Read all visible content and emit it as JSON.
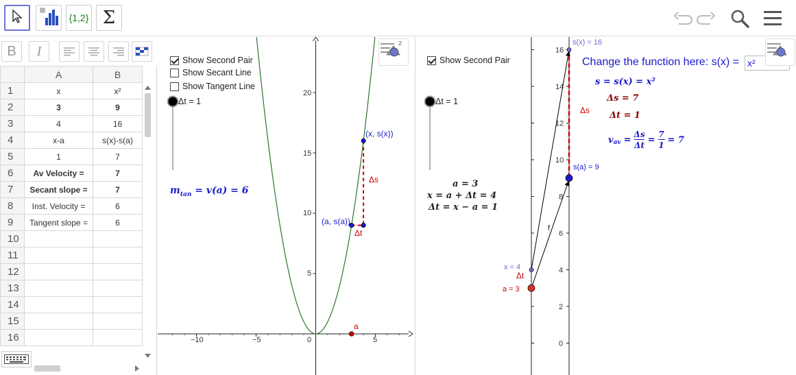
{
  "toolbar": {
    "tools": [
      {
        "name": "move-tool",
        "label": ""
      },
      {
        "name": "chart-tool",
        "label": ""
      },
      {
        "name": "list-tool",
        "label": "{1,2}"
      },
      {
        "name": "sum-tool",
        "label": "Σ"
      }
    ],
    "right_icons": [
      "undo-icon",
      "redo-icon",
      "search-icon",
      "menu-icon"
    ]
  },
  "spreadsheet": {
    "format_buttons": [
      "B",
      "I"
    ],
    "columns": [
      "A",
      "B"
    ],
    "rows": [
      {
        "n": "1",
        "a": "x",
        "b": "x²",
        "bold": false
      },
      {
        "n": "2",
        "a": "3",
        "b": "9",
        "bold": true
      },
      {
        "n": "3",
        "a": "4",
        "b": "16",
        "bold": false
      },
      {
        "n": "4",
        "a": "x-a",
        "b": "s(x)-s(a)",
        "bold": false
      },
      {
        "n": "5",
        "a": "1",
        "b": "7",
        "bold": false
      },
      {
        "n": "6",
        "a": "Av Velocity =",
        "b": "7",
        "bold": true
      },
      {
        "n": "7",
        "a": "Secant slope =",
        "b": "7",
        "bold": true
      },
      {
        "n": "8",
        "a": "Inst. Velocity =",
        "b": "6",
        "bold": false
      },
      {
        "n": "9",
        "a": "Tangent slope =",
        "b": "6",
        "bold": false
      },
      {
        "n": "10",
        "a": "",
        "b": "",
        "bold": false
      },
      {
        "n": "11",
        "a": "",
        "b": "",
        "bold": false
      },
      {
        "n": "12",
        "a": "",
        "b": "",
        "bold": false
      },
      {
        "n": "13",
        "a": "",
        "b": "",
        "bold": false
      },
      {
        "n": "14",
        "a": "",
        "b": "",
        "bold": false
      },
      {
        "n": "15",
        "a": "",
        "b": "",
        "bold": false
      },
      {
        "n": "16",
        "a": "",
        "b": "",
        "bold": false
      }
    ]
  },
  "left_view": {
    "checkboxes": [
      {
        "label": "Show Second Pair",
        "checked": true
      },
      {
        "label": "Show Secant Line",
        "checked": false
      },
      {
        "label": "Show Tangent Line",
        "checked": false
      }
    ],
    "slider_label": "Δt = 1",
    "m_tan_text": "mtan = v(a) = 6",
    "m_tan_main": "m",
    "m_tan_sub": "tan",
    "m_tan_rest": " = v(a) = 6",
    "point_upper_label": "(x, s(x))",
    "point_lower_label": "(a, s(a))",
    "delta_s_label": "Δs",
    "delta_t_label": "Δt",
    "a_label": "a",
    "x_ticks": [
      "−10",
      "−5",
      "0",
      "5"
    ],
    "y_ticks": [
      "5",
      "10",
      "15",
      "20"
    ],
    "curve_color": "#1a6b1a",
    "point_color": "#1a1acc",
    "red_color": "#cc0000"
  },
  "right_view": {
    "checkbox_label": "Show Second Pair",
    "checkbox_checked": true,
    "slider_label": "Δt = 1",
    "change_fn_text": "Change the function here:  s(x) =",
    "fn_input_value": "x²",
    "eq_s": "s = s(x) = x²",
    "eq_ds": "Δs = 7",
    "eq_dt": "Δt = 1",
    "eq_v_lhs": "v",
    "eq_v_sub": "av",
    "eq_v_rhs": "=",
    "eq_v_frac1_num": "Δs",
    "eq_v_frac1_den": "Δt",
    "eq_v_frac2_num": "7",
    "eq_v_frac2_den": "1",
    "eq_v_result": "= 7",
    "eq_a": "a = 3",
    "eq_x": "x = a + Δt = 4",
    "eq_dt2": "Δt = x − a = 1",
    "label_sx": "s(x) = 16",
    "label_sa": "s(a) = 9",
    "label_x4": "x  = 4",
    "label_a3": "a = 3",
    "label_ds": "Δs",
    "label_dt": "Δt",
    "label_f": "f",
    "y_ticks": [
      "0",
      "2",
      "4",
      "6",
      "8",
      "10",
      "12",
      "14",
      "16"
    ],
    "blue_color": "#1a1acc",
    "dark_red": "#8b0000"
  }
}
